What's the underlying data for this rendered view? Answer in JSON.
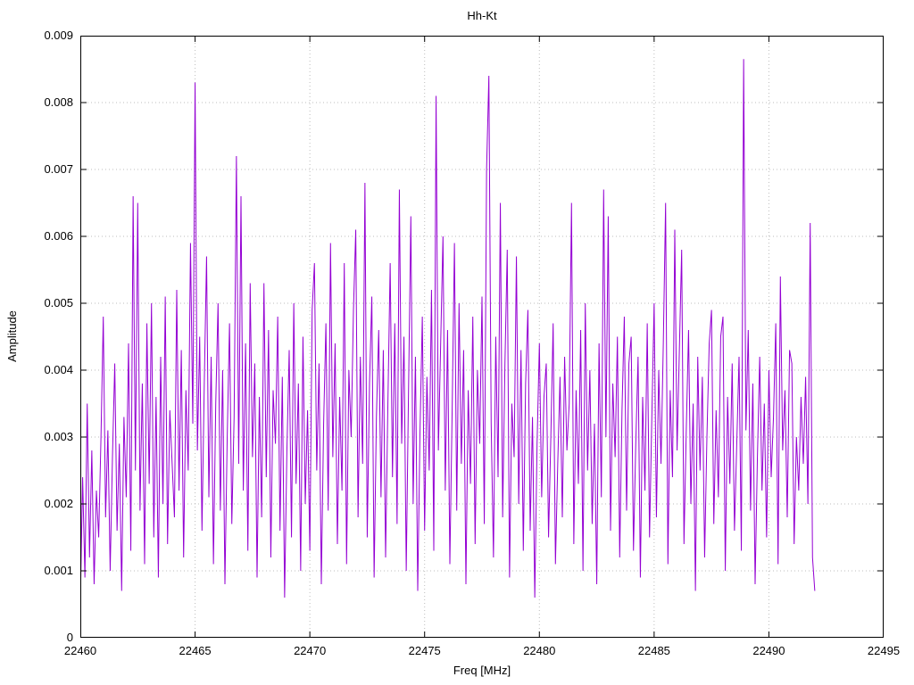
{
  "chart": {
    "title": "Hh-Kt",
    "xlabel": "Freq [MHz]",
    "ylabel": "Amplitude"
  },
  "chart_data": {
    "type": "line",
    "title": "Hh-Kt",
    "xlabel": "Freq [MHz]",
    "ylabel": "Amplitude",
    "xlim": [
      22460,
      22495
    ],
    "ylim": [
      0,
      0.009
    ],
    "grid": true,
    "legend": "none",
    "line_color": "#9400d3",
    "grid_color": "#bdbdbd",
    "border_color": "#000000",
    "x_ticks": [
      22460,
      22465,
      22470,
      22475,
      22480,
      22485,
      22490,
      22495
    ],
    "x_tick_labels": [
      "22460",
      "22465",
      "22470",
      "22475",
      "22480",
      "22485",
      "22490",
      "22495"
    ],
    "y_ticks": [
      0,
      0.001,
      0.002,
      0.003,
      0.004,
      0.005,
      0.006,
      0.007,
      0.008,
      0.009
    ],
    "y_tick_labels": [
      "0",
      "0.001",
      "0.002",
      "0.003",
      "0.004",
      "0.005",
      "0.006",
      "0.007",
      "0.008",
      "0.009"
    ],
    "series": [
      {
        "name": "Hh-Kt",
        "x_start": 22460.0,
        "x_step": 0.1,
        "values": [
          0.0005,
          0.0024,
          0.0009,
          0.0035,
          0.0012,
          0.0028,
          0.0008,
          0.0022,
          0.0015,
          0.003,
          0.0048,
          0.0018,
          0.0031,
          0.001,
          0.0027,
          0.0041,
          0.0016,
          0.0029,
          0.0007,
          0.0033,
          0.0021,
          0.0044,
          0.0013,
          0.0066,
          0.0025,
          0.0065,
          0.0019,
          0.0038,
          0.0011,
          0.0047,
          0.0023,
          0.005,
          0.0015,
          0.0036,
          0.0009,
          0.0042,
          0.002,
          0.0051,
          0.0014,
          0.0034,
          0.0026,
          0.0018,
          0.0052,
          0.0022,
          0.0043,
          0.0012,
          0.0037,
          0.0025,
          0.0059,
          0.0032,
          0.0083,
          0.0028,
          0.0045,
          0.0016,
          0.0038,
          0.0057,
          0.0021,
          0.0042,
          0.0011,
          0.0035,
          0.005,
          0.0019,
          0.004,
          0.0008,
          0.003,
          0.0047,
          0.0017,
          0.0033,
          0.0072,
          0.0026,
          0.0066,
          0.0022,
          0.0044,
          0.0013,
          0.0053,
          0.0027,
          0.0041,
          0.0009,
          0.0036,
          0.0018,
          0.0053,
          0.0024,
          0.0046,
          0.0012,
          0.0037,
          0.0029,
          0.0048,
          0.0016,
          0.0039,
          0.0006,
          0.0028,
          0.0043,
          0.0015,
          0.005,
          0.0023,
          0.0038,
          0.001,
          0.0045,
          0.002,
          0.0034,
          0.0013,
          0.0049,
          0.0056,
          0.0025,
          0.0041,
          0.0008,
          0.0032,
          0.0047,
          0.0019,
          0.0059,
          0.0027,
          0.0044,
          0.0014,
          0.0036,
          0.0022,
          0.0056,
          0.0011,
          0.004,
          0.003,
          0.0049,
          0.0061,
          0.0018,
          0.0042,
          0.0026,
          0.0068,
          0.0015,
          0.0038,
          0.0051,
          0.0009,
          0.0033,
          0.0046,
          0.0021,
          0.0043,
          0.0012,
          0.0035,
          0.0056,
          0.0024,
          0.0047,
          0.0017,
          0.0067,
          0.0029,
          0.0045,
          0.001,
          0.0037,
          0.0063,
          0.002,
          0.0042,
          0.0007,
          0.0031,
          0.0048,
          0.0016,
          0.0039,
          0.0025,
          0.0052,
          0.0013,
          0.0081,
          0.0028,
          0.0044,
          0.006,
          0.0022,
          0.0046,
          0.0011,
          0.0034,
          0.0059,
          0.0019,
          0.005,
          0.0026,
          0.0043,
          0.0008,
          0.0037,
          0.0023,
          0.0048,
          0.0014,
          0.004,
          0.0029,
          0.0051,
          0.0017,
          0.007,
          0.0084,
          0.0032,
          0.0012,
          0.0045,
          0.0024,
          0.0065,
          0.0018,
          0.0041,
          0.0058,
          0.0009,
          0.0035,
          0.0027,
          0.0057,
          0.002,
          0.0043,
          0.0013,
          0.0038,
          0.0049,
          0.0016,
          0.0033,
          0.0006,
          0.0029,
          0.0044,
          0.0021,
          0.0036,
          0.0041,
          0.0015,
          0.003,
          0.0047,
          0.0011,
          0.0026,
          0.0039,
          0.0018,
          0.0042,
          0.0028,
          0.0035,
          0.0065,
          0.0014,
          0.0037,
          0.0023,
          0.0046,
          0.001,
          0.005,
          0.0025,
          0.004,
          0.0017,
          0.0032,
          0.0008,
          0.0044,
          0.0021,
          0.0067,
          0.003,
          0.0063,
          0.0016,
          0.0038,
          0.0027,
          0.0045,
          0.0012,
          0.0034,
          0.0048,
          0.0019,
          0.0041,
          0.0045,
          0.0013,
          0.0029,
          0.0042,
          0.0009,
          0.0036,
          0.0022,
          0.0047,
          0.0015,
          0.0033,
          0.005,
          0.0018,
          0.004,
          0.0026,
          0.0044,
          0.0065,
          0.0011,
          0.0037,
          0.0024,
          0.0061,
          0.0028,
          0.0043,
          0.0058,
          0.0014,
          0.0031,
          0.0046,
          0.002,
          0.0035,
          0.0007,
          0.0042,
          0.0025,
          0.0039,
          0.0012,
          0.003,
          0.0044,
          0.0049,
          0.0017,
          0.0034,
          0.0021,
          0.0045,
          0.0048,
          0.001,
          0.0036,
          0.0023,
          0.0041,
          0.0016,
          0.0029,
          0.0042,
          0.0013,
          0.00865,
          0.0031,
          0.0046,
          0.0019,
          0.0038,
          0.0008,
          0.0027,
          0.0042,
          0.0022,
          0.0035,
          0.0015,
          0.004,
          0.0024,
          0.0033,
          0.0047,
          0.0011,
          0.0054,
          0.0028,
          0.0037,
          0.0018,
          0.0043,
          0.0041,
          0.0014,
          0.003,
          0.0022,
          0.0036,
          0.0026,
          0.0039,
          0.002,
          0.0062,
          0.0012,
          0.0007
        ]
      }
    ]
  }
}
